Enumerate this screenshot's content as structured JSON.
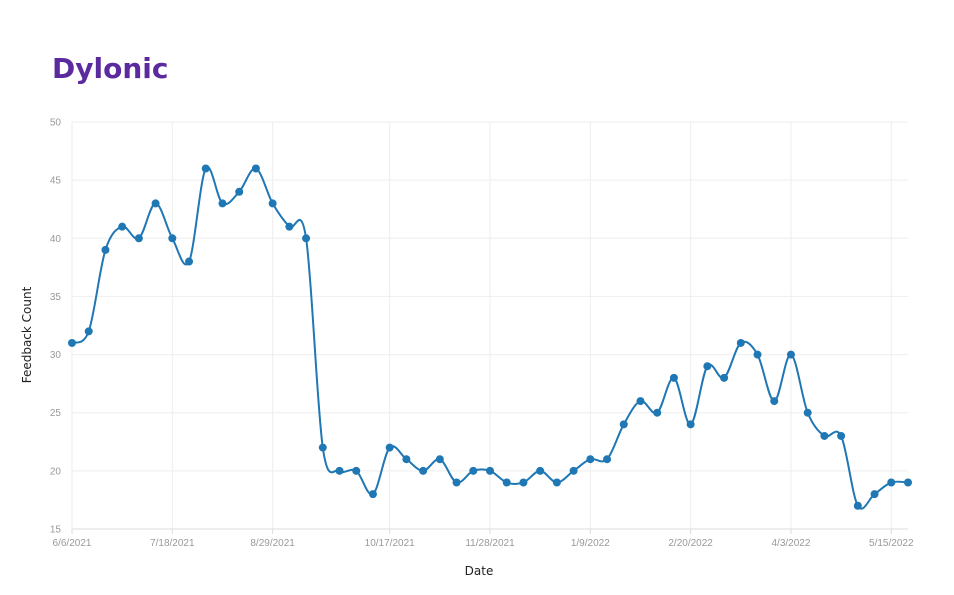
{
  "chart_data": {
    "type": "line",
    "title": "Dylonic",
    "xlabel": "Date",
    "ylabel": "Feedback Count",
    "ylim": [
      15,
      50
    ],
    "yticks": [
      15,
      20,
      25,
      30,
      35,
      40,
      45,
      50
    ],
    "x_tick_labels": [
      "6/6/2021",
      "7/18/2021",
      "8/29/2021",
      "10/17/2021",
      "11/28/2021",
      "1/9/2022",
      "2/20/2022",
      "4/3/2022",
      "5/15/2022"
    ],
    "x_tick_dates": [
      "2021-06-06",
      "2021-07-18",
      "2021-08-29",
      "2021-10-17",
      "2021-11-28",
      "2022-01-09",
      "2022-02-20",
      "2022-04-03",
      "2022-05-15"
    ],
    "grid": true,
    "series": [
      {
        "color": "#1f77b4",
        "x": [
          "2021-06-06",
          "2021-06-13",
          "2021-06-20",
          "2021-06-27",
          "2021-07-04",
          "2021-07-11",
          "2021-07-18",
          "2021-07-25",
          "2021-08-01",
          "2021-08-08",
          "2021-08-15",
          "2021-08-22",
          "2021-08-29",
          "2021-09-05",
          "2021-09-12",
          "2021-09-19",
          "2021-09-26",
          "2021-10-03",
          "2021-10-10",
          "2021-10-17",
          "2021-10-24",
          "2021-10-31",
          "2021-11-07",
          "2021-11-14",
          "2021-11-21",
          "2021-11-28",
          "2021-12-05",
          "2021-12-12",
          "2021-12-19",
          "2021-12-26",
          "2022-01-02",
          "2022-01-09",
          "2022-01-16",
          "2022-01-23",
          "2022-01-30",
          "2022-02-06",
          "2022-02-13",
          "2022-02-20",
          "2022-02-27",
          "2022-03-06",
          "2022-03-13",
          "2022-03-20",
          "2022-03-27",
          "2022-04-03",
          "2022-04-10",
          "2022-04-17",
          "2022-04-24",
          "2022-05-01",
          "2022-05-08",
          "2022-05-15",
          "2022-05-22"
        ],
        "values": [
          31,
          32,
          39,
          41,
          40,
          43,
          40,
          38,
          46,
          43,
          44,
          46,
          43,
          41,
          40,
          22,
          20,
          20,
          18,
          22,
          21,
          20,
          21,
          19,
          20,
          20,
          19,
          19,
          20,
          19,
          20,
          21,
          21,
          24,
          26,
          25,
          28,
          24,
          29,
          28,
          31,
          30,
          26,
          30,
          25,
          23,
          23,
          17,
          18,
          19,
          19
        ]
      }
    ]
  }
}
